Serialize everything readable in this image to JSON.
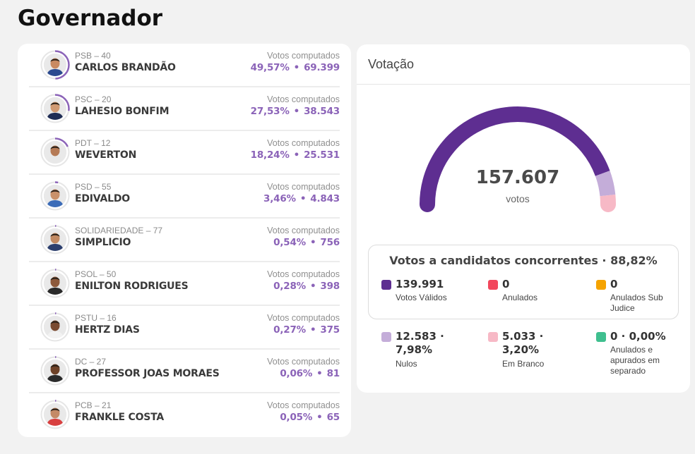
{
  "page": {
    "title": "Governador"
  },
  "candidates": [
    {
      "party": "PSB – 40",
      "name": "CARLOS BRANDÃO",
      "votes_label": "Votos computados",
      "percent": "49,57%",
      "votes": "69.399",
      "share": 0.4957,
      "skin": "#c98a62",
      "shirt": "#2b4a8f"
    },
    {
      "party": "PSC – 20",
      "name": "LAHESIO BONFIM",
      "votes_label": "Votos computados",
      "percent": "27,53%",
      "votes": "38.543",
      "share": 0.2753,
      "skin": "#d19a73",
      "shirt": "#1f2d55"
    },
    {
      "party": "PDT – 12",
      "name": "WEVERTON",
      "votes_label": "Votos computados",
      "percent": "18,24%",
      "votes": "25.531",
      "share": 0.1824,
      "skin": "#b57a55",
      "shirt": "#e8e8e8"
    },
    {
      "party": "PSD – 55",
      "name": "EDIVALDO",
      "votes_label": "Votos computados",
      "percent": "3,46%",
      "votes": "4.843",
      "share": 0.0346,
      "skin": "#c9916a",
      "shirt": "#3c6cb8"
    },
    {
      "party": "SOLIDARIEDADE – 77",
      "name": "SIMPLICIO",
      "votes_label": "Votos computados",
      "percent": "0,54%",
      "votes": "756",
      "share": 0.0054,
      "skin": "#c28a63",
      "shirt": "#2c3f6e"
    },
    {
      "party": "PSOL – 50",
      "name": "ENILTON RODRIGUES",
      "votes_label": "Votos computados",
      "percent": "0,28%",
      "votes": "398",
      "share": 0.0028,
      "skin": "#8d5a3c",
      "shirt": "#2a2a2a"
    },
    {
      "party": "PSTU – 16",
      "name": "HERTZ DIAS",
      "votes_label": "Votos computados",
      "percent": "0,27%",
      "votes": "375",
      "share": 0.0027,
      "skin": "#7a4a30",
      "shirt": "#f2f2f2"
    },
    {
      "party": "DC – 27",
      "name": "PROFESSOR JOAS MORAES",
      "votes_label": "Votos computados",
      "percent": "0,06%",
      "votes": "81",
      "share": 0.0006,
      "skin": "#6e4228",
      "shirt": "#2a2a2a"
    },
    {
      "party": "PCB – 21",
      "name": "FRANKLE COSTA",
      "votes_label": "Votos computados",
      "percent": "0,05%",
      "votes": "65",
      "share": 0.0005,
      "skin": "#c48a66",
      "shirt": "#d84040"
    }
  ],
  "votacao": {
    "title": "Votação",
    "total": "157.607",
    "total_unit": "votos",
    "gauge_shares": {
      "validos": 0.8882,
      "nulos": 0.0798,
      "em_branco": 0.032
    },
    "summary_title": "Votos a candidatos concorrentes · 88,82%",
    "stats": [
      {
        "value": "139.991",
        "label": "Votos Válidos",
        "color": "#5e2e91"
      },
      {
        "value": "0",
        "label": "Anulados",
        "color": "#f2475c"
      },
      {
        "value": "0",
        "label": "Anulados Sub Judice",
        "color": "#f5a300"
      },
      {
        "value": "12.583 · 7,98%",
        "label": "Nulos",
        "color": "#c4add9"
      },
      {
        "value": "5.033 · 3,20%",
        "label": "Em Branco",
        "color": "#f7b9c6"
      },
      {
        "value": "0 · 0,00%",
        "label": "Anulados e apurados em separado",
        "color": "#3fbf8f"
      }
    ]
  },
  "colors": {
    "accent": "#5e2e91",
    "accent_text": "#8b63b8",
    "ring_track": "#e6e6e6",
    "nulos": "#c4add9",
    "em_branco": "#f7b9c6"
  }
}
